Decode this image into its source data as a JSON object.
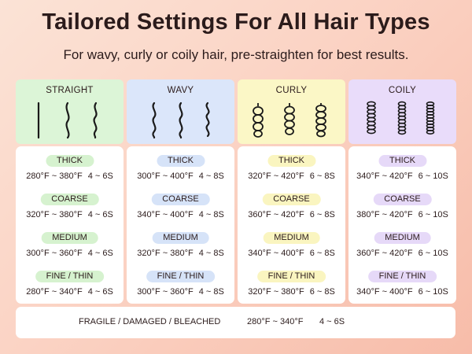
{
  "title": "Tailored Settings For All Hair Types",
  "subtitle": "For wavy, curly or coily hair, pre-straighten for best results.",
  "columns": [
    {
      "label": "STRAIGHT",
      "icon": "straight-hair-icon",
      "head_color": "#dcf5d7",
      "tag_color": "#d6f2cf",
      "rows": [
        {
          "tag": "THICK",
          "temp": "280°F ~ 380°F",
          "time": "4 ~ 6S"
        },
        {
          "tag": "COARSE",
          "temp": "320°F ~ 380°F",
          "time": "4 ~ 6S"
        },
        {
          "tag": "MEDIUM",
          "temp": "300°F ~ 360°F",
          "time": "4 ~ 6S"
        },
        {
          "tag": "FINE / THIN",
          "temp": "280°F ~ 340°F",
          "time": "4 ~ 6S"
        }
      ]
    },
    {
      "label": "WAVY",
      "icon": "wavy-hair-icon",
      "head_color": "#dbe6fa",
      "tag_color": "#d6e3f8",
      "rows": [
        {
          "tag": "THICK",
          "temp": "300°F ~ 400°F",
          "time": "4 ~ 8S"
        },
        {
          "tag": "COARSE",
          "temp": "340°F ~ 400°F",
          "time": "4 ~ 8S"
        },
        {
          "tag": "MEDIUM",
          "temp": "320°F ~ 380°F",
          "time": "4 ~ 8S"
        },
        {
          "tag": "FINE / THIN",
          "temp": "300°F ~ 360°F",
          "time": "4 ~ 8S"
        }
      ]
    },
    {
      "label": "CURLY",
      "icon": "curly-hair-icon",
      "head_color": "#fbf7c6",
      "tag_color": "#faf5c0",
      "rows": [
        {
          "tag": "THICK",
          "temp": "320°F ~ 420°F",
          "time": "6 ~ 8S"
        },
        {
          "tag": "COARSE",
          "temp": "360°F ~ 420°F",
          "time": "6 ~ 8S"
        },
        {
          "tag": "MEDIUM",
          "temp": "340°F ~ 400°F",
          "time": "6 ~ 8S"
        },
        {
          "tag": "FINE / THIN",
          "temp": "320°F ~ 380°F",
          "time": "6 ~ 8S"
        }
      ]
    },
    {
      "label": "COILY",
      "icon": "coily-hair-icon",
      "head_color": "#e9dcfa",
      "tag_color": "#e6d9f8",
      "rows": [
        {
          "tag": "THICK",
          "temp": "340°F ~ 420°F",
          "time": "6 ~ 10S"
        },
        {
          "tag": "COARSE",
          "temp": "380°F ~ 420°F",
          "time": "6 ~ 10S"
        },
        {
          "tag": "MEDIUM",
          "temp": "360°F ~ 420°F",
          "time": "6 ~ 10S"
        },
        {
          "tag": "FINE / THIN",
          "temp": "340°F ~ 400°F",
          "time": "6 ~ 10S"
        }
      ]
    }
  ],
  "bottom": {
    "label": "FRAGILE / DAMAGED / BLEACHED",
    "temp": "280°F ~ 340°F",
    "time": "4 ~ 6S"
  }
}
